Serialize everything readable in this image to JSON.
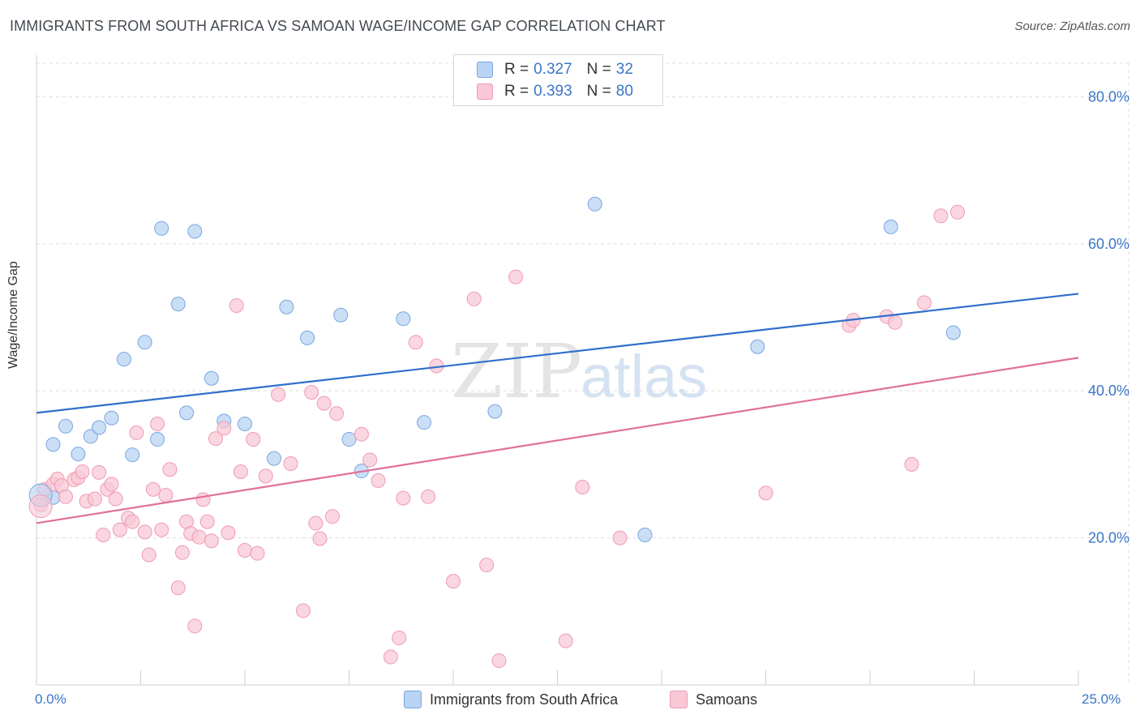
{
  "header": {
    "title": "IMMIGRANTS FROM SOUTH AFRICA VS SAMOAN WAGE/INCOME GAP CORRELATION CHART",
    "source": "Source: ZipAtlas.com"
  },
  "legend": {
    "series1": {
      "r_label": "R =",
      "r_value": "0.327",
      "n_label": "N =",
      "n_value": "32"
    },
    "series2": {
      "r_label": "R =",
      "r_value": "0.393",
      "n_label": "N =",
      "n_value": "80"
    }
  },
  "bottom_legend": {
    "series1": "Immigrants from South Africa",
    "series2": "Samoans"
  },
  "watermark": {
    "zip": "ZIP",
    "atlas": "atlas"
  },
  "colors": {
    "series1_fill": "#b8d3f3",
    "series1_stroke": "#7aa7e0",
    "series1_line": "#2f6fcc",
    "series2_fill": "#f8c8d6",
    "series2_stroke": "#ef9ab4",
    "series2_line": "#e0709a",
    "axis_text": "#3a76c8",
    "grid": "#dddddd"
  },
  "chart_data": {
    "type": "scatter",
    "title": "IMMIGRANTS FROM SOUTH AFRICA VS SAMOAN WAGE/INCOME GAP CORRELATION CHART",
    "xlabel": "",
    "ylabel": "Wage/Income Gap",
    "xlim": [
      0,
      25
    ],
    "ylim": [
      0,
      85
    ],
    "x_tick_labels": [
      "0.0%",
      "25.0%"
    ],
    "y_ticks": [
      20,
      40,
      60,
      80
    ],
    "y_tick_labels": [
      "20.0%",
      "40.0%",
      "60.0%",
      "80.0%"
    ],
    "grid": true,
    "legend_position": "top-center",
    "series": [
      {
        "name": "Immigrants from South Africa",
        "trend": {
          "x": [
            0,
            25
          ],
          "y": [
            37.0,
            53.2
          ]
        },
        "points": [
          [
            0.4,
            25.5
          ],
          [
            0.4,
            32.7
          ],
          [
            0.7,
            35.2
          ],
          [
            1.0,
            31.4
          ],
          [
            1.3,
            33.8
          ],
          [
            1.5,
            35.0
          ],
          [
            1.8,
            36.3
          ],
          [
            2.1,
            44.3
          ],
          [
            2.3,
            31.3
          ],
          [
            2.6,
            46.6
          ],
          [
            2.9,
            33.4
          ],
          [
            3.0,
            62.1
          ],
          [
            3.4,
            51.8
          ],
          [
            3.6,
            37.0
          ],
          [
            3.8,
            61.7
          ],
          [
            4.2,
            41.7
          ],
          [
            4.5,
            35.9
          ],
          [
            5.0,
            35.5
          ],
          [
            5.7,
            30.8
          ],
          [
            6.0,
            51.4
          ],
          [
            6.5,
            47.2
          ],
          [
            7.3,
            50.3
          ],
          [
            7.5,
            33.4
          ],
          [
            7.8,
            29.1
          ],
          [
            8.8,
            49.8
          ],
          [
            9.3,
            35.7
          ],
          [
            11.0,
            37.2
          ],
          [
            13.4,
            65.4
          ],
          [
            14.6,
            20.4
          ],
          [
            17.3,
            46.0
          ],
          [
            20.5,
            62.3
          ],
          [
            22.0,
            47.9
          ]
        ]
      },
      {
        "name": "Samoans",
        "trend": {
          "x": [
            0,
            25
          ],
          "y": [
            22.0,
            44.5
          ]
        },
        "points": [
          [
            0.1,
            24.5
          ],
          [
            0.2,
            26.6
          ],
          [
            0.4,
            27.3
          ],
          [
            0.5,
            28.0
          ],
          [
            0.6,
            27.1
          ],
          [
            0.7,
            25.6
          ],
          [
            0.9,
            27.9
          ],
          [
            1.0,
            28.2
          ],
          [
            1.1,
            29.0
          ],
          [
            1.2,
            25.0
          ],
          [
            1.4,
            25.3
          ],
          [
            1.5,
            28.9
          ],
          [
            1.6,
            20.4
          ],
          [
            1.7,
            26.6
          ],
          [
            1.8,
            27.3
          ],
          [
            1.9,
            25.3
          ],
          [
            2.0,
            21.1
          ],
          [
            2.2,
            22.7
          ],
          [
            2.3,
            22.2
          ],
          [
            2.4,
            34.3
          ],
          [
            2.6,
            20.8
          ],
          [
            2.7,
            17.7
          ],
          [
            2.8,
            26.6
          ],
          [
            2.9,
            35.5
          ],
          [
            3.0,
            21.1
          ],
          [
            3.1,
            25.8
          ],
          [
            3.2,
            29.3
          ],
          [
            3.4,
            13.2
          ],
          [
            3.5,
            18.0
          ],
          [
            3.6,
            22.2
          ],
          [
            3.7,
            20.6
          ],
          [
            3.8,
            8.0
          ],
          [
            3.9,
            20.1
          ],
          [
            4.0,
            25.2
          ],
          [
            4.1,
            22.2
          ],
          [
            4.2,
            19.6
          ],
          [
            4.3,
            33.5
          ],
          [
            4.5,
            34.9
          ],
          [
            4.6,
            20.7
          ],
          [
            4.8,
            51.6
          ],
          [
            4.9,
            29.0
          ],
          [
            5.0,
            18.3
          ],
          [
            5.2,
            33.4
          ],
          [
            5.3,
            17.9
          ],
          [
            5.5,
            28.4
          ],
          [
            5.8,
            39.5
          ],
          [
            6.1,
            30.1
          ],
          [
            6.4,
            10.1
          ],
          [
            6.6,
            39.8
          ],
          [
            6.7,
            22.0
          ],
          [
            6.8,
            19.9
          ],
          [
            6.9,
            38.3
          ],
          [
            7.1,
            22.9
          ],
          [
            7.2,
            36.9
          ],
          [
            7.8,
            34.1
          ],
          [
            8.0,
            30.6
          ],
          [
            8.2,
            27.8
          ],
          [
            8.5,
            3.8
          ],
          [
            8.7,
            6.4
          ],
          [
            8.8,
            25.4
          ],
          [
            9.1,
            46.6
          ],
          [
            9.4,
            25.6
          ],
          [
            9.6,
            43.4
          ],
          [
            10.0,
            14.1
          ],
          [
            10.5,
            52.5
          ],
          [
            10.8,
            16.3
          ],
          [
            11.1,
            3.3
          ],
          [
            11.5,
            55.5
          ],
          [
            12.7,
            6.0
          ],
          [
            13.1,
            26.9
          ],
          [
            14.0,
            20.0
          ],
          [
            17.5,
            26.1
          ],
          [
            19.5,
            48.9
          ],
          [
            19.6,
            49.6
          ],
          [
            20.4,
            50.1
          ],
          [
            20.6,
            49.3
          ],
          [
            21.0,
            30.0
          ],
          [
            21.3,
            52.0
          ],
          [
            21.7,
            63.8
          ],
          [
            22.1,
            64.3
          ]
        ]
      }
    ]
  }
}
